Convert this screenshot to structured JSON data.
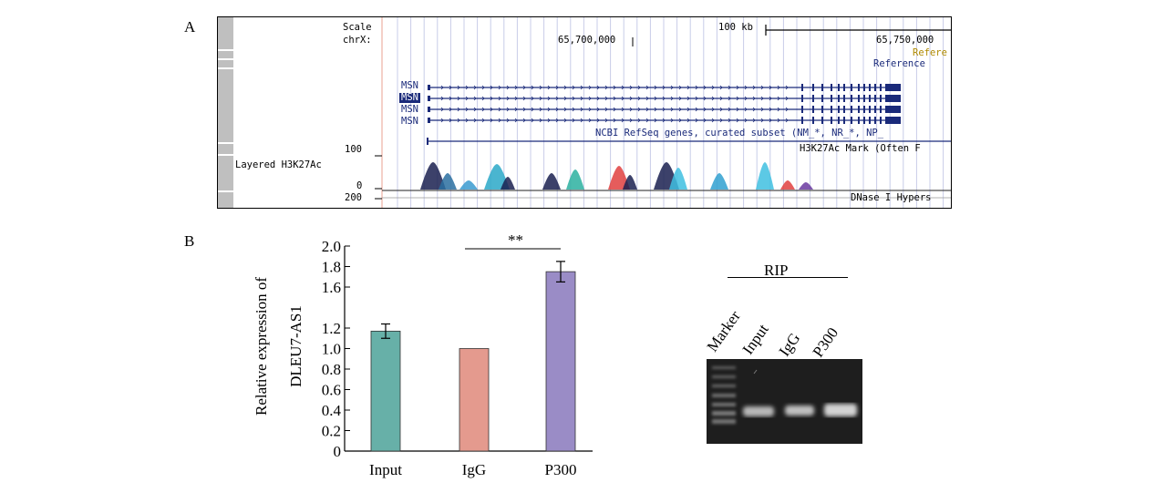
{
  "panel_a": {
    "letter": "A",
    "scale_label": "Scale",
    "chrom_label": "chrX:",
    "scale_bar": "100 kb",
    "pos1": "65,700,000",
    "pos2": "65,750,000",
    "ref1": "Refere",
    "ref2": "Reference",
    "genes": [
      "MSN",
      "MSN",
      "MSN",
      "MSN"
    ],
    "refseq_label": "NCBI RefSeq genes, curated subset (NM_*, NR_*, NP_",
    "h3k_mark_label": "H3K27Ac Mark (Often F",
    "layered_label": "Layered H3K27Ac",
    "y100": "100",
    "y0": "0",
    "y200": "200",
    "dnase_label": "DNase I Hypers",
    "colors": {
      "gene_track": "#1a2a7a",
      "ref1": "#b08a00",
      "ref2": "#1a2a7a"
    }
  },
  "panel_b": {
    "letter": "B",
    "chart_data": {
      "type": "bar",
      "categories": [
        "Input",
        "IgG",
        "P300"
      ],
      "values": [
        1.17,
        1.0,
        1.75
      ],
      "errors": [
        0.07,
        0,
        0.1
      ],
      "colors": [
        "#67b0a8",
        "#e49a8e",
        "#9a8cc6"
      ],
      "ylabel": "Relative expression of DLEU7-AS1",
      "ylabel_line1": "Relative expression of",
      "ylabel_line2": "DLEU7-AS1",
      "yticks": [
        "0",
        "0.2",
        "0.4",
        "0.6",
        "0.8",
        "1.0",
        "1.2",
        "1.6",
        "1.8",
        "2.0"
      ],
      "ylim": [
        0,
        2.0
      ],
      "significance": {
        "label": "**",
        "between": [
          "IgG",
          "P300"
        ]
      }
    },
    "rip": {
      "title": "RIP",
      "lanes": [
        "Marker",
        "Input",
        "IgG",
        "P300"
      ]
    }
  }
}
